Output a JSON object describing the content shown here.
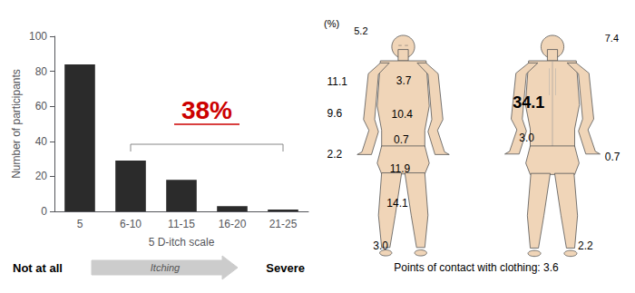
{
  "chart_data": {
    "type": "bar",
    "categories": [
      "5",
      "6-10",
      "11-15",
      "16-20",
      "21-25"
    ],
    "values": [
      84,
      29,
      18,
      3,
      1
    ],
    "color": "#2b2b2b",
    "xlabel": "5 D-itch scale",
    "ylabel": "Number of participants",
    "ylim": [
      0,
      100
    ],
    "yticks": [
      0,
      20,
      40,
      60,
      80,
      100
    ],
    "grid": false,
    "annotations": [
      {
        "text": "38%",
        "color": "#cc0000"
      },
      {
        "text": "Not at all"
      },
      {
        "text": "Itching"
      },
      {
        "text": "Severe"
      },
      {
        "text": "(%)"
      },
      {
        "text": "5.2"
      },
      {
        "text": "11.1"
      },
      {
        "text": "9.6"
      },
      {
        "text": "2.2"
      },
      {
        "text": "3.0"
      },
      {
        "text": "3.7"
      },
      {
        "text": "10.4"
      },
      {
        "text": "0.7"
      },
      {
        "text": "11.9"
      },
      {
        "text": "14.1"
      },
      {
        "text": "7.4"
      },
      {
        "text": "0.7"
      },
      {
        "text": "2.2"
      },
      {
        "text": "34.1"
      },
      {
        "text": "3.0"
      },
      {
        "text": "Points of contact with clothing: 3.6"
      }
    ]
  }
}
